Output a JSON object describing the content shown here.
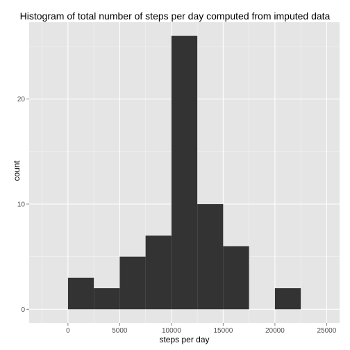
{
  "chart_data": {
    "type": "bar",
    "title": "Histogram of total number of steps per day computed from imputed data",
    "xlabel": "steps per day",
    "ylabel": "count",
    "bin_width": 2500,
    "bins": [
      {
        "x0": 0,
        "x1": 2500,
        "count": 3
      },
      {
        "x0": 2500,
        "x1": 5000,
        "count": 2
      },
      {
        "x0": 5000,
        "x1": 7500,
        "count": 5
      },
      {
        "x0": 7500,
        "x1": 10000,
        "count": 7
      },
      {
        "x0": 10000,
        "x1": 12500,
        "count": 26
      },
      {
        "x0": 12500,
        "x1": 15000,
        "count": 10
      },
      {
        "x0": 15000,
        "x1": 17500,
        "count": 6
      },
      {
        "x0": 17500,
        "x1": 20000,
        "count": 0
      },
      {
        "x0": 20000,
        "x1": 22500,
        "count": 2
      }
    ],
    "xlim": [
      -3750,
      26250
    ],
    "ylim": [
      -1.3,
      27.3
    ],
    "xticks": [
      0,
      5000,
      10000,
      15000,
      20000,
      25000
    ],
    "xtick_labels": [
      "0",
      "5000",
      "10000",
      "15000",
      "20000",
      "25000"
    ],
    "yticks": [
      0,
      10,
      20
    ],
    "ytick_labels": [
      "0",
      "10",
      "20"
    ],
    "grid": true,
    "legend": "none",
    "colors": {
      "panel_bg": "#e5e5e5",
      "grid_major": "#ffffff",
      "grid_minor": "#f2f2f2",
      "bar_fill": "#333333",
      "tick_text": "#4d4d4d"
    }
  }
}
